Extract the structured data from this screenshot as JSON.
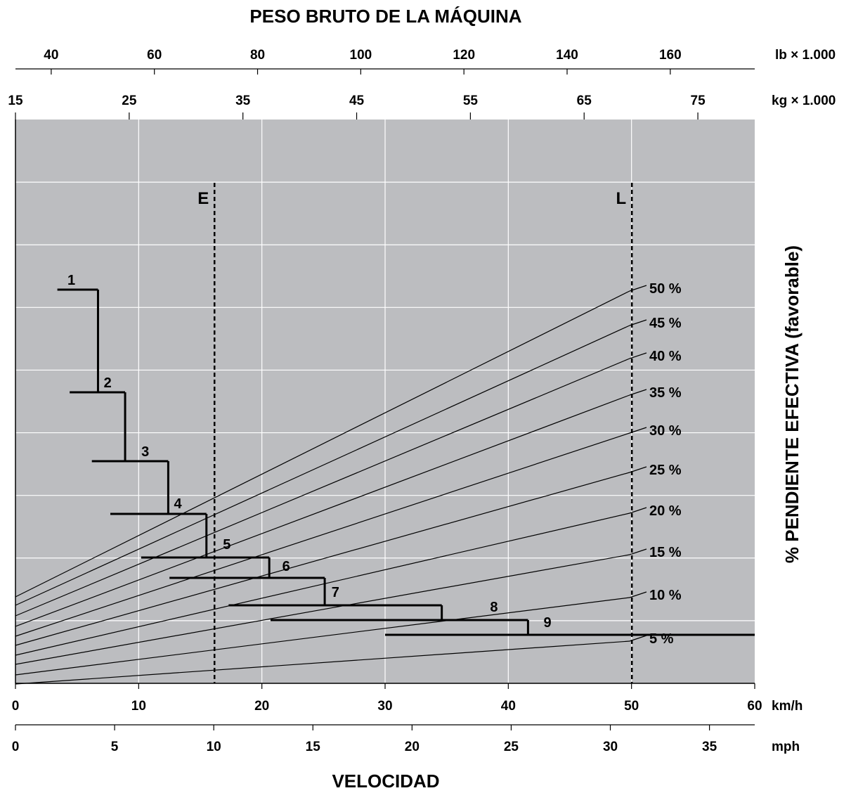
{
  "chart_data": {
    "type": "line",
    "title": "PESO BRUTO DE LA MÁQUINA",
    "xlabel": "VELOCIDAD",
    "ylabel": "% PENDIENTE EFECTIVA (favorable)",
    "top_axes": [
      {
        "unit": "lb × 1.000",
        "ticks": [
          40,
          60,
          80,
          100,
          120,
          140,
          160
        ]
      },
      {
        "unit": "kg × 1.000",
        "ticks": [
          15,
          25,
          35,
          45,
          55,
          65,
          75
        ]
      }
    ],
    "bottom_axes": [
      {
        "unit": "km/h",
        "ticks": [
          0,
          10,
          20,
          30,
          40,
          50,
          60
        ],
        "xlim": [
          0,
          60
        ]
      },
      {
        "unit": "mph",
        "ticks": [
          0,
          5,
          10,
          15,
          20,
          25,
          30,
          35
        ]
      }
    ],
    "weight_markers": [
      {
        "label": "E",
        "kg": 32.5
      },
      {
        "label": "L",
        "kg": 69.2
      }
    ],
    "grade_lines": [
      {
        "name": "50 %",
        "start_kg": 15.0,
        "end_kg": 69.0
      },
      {
        "name": "45 %",
        "start_kg": 15.0,
        "end_kg": 69.0
      },
      {
        "name": "40 %",
        "start_kg": 15.0,
        "end_kg": 69.0
      },
      {
        "name": "35 %",
        "start_kg": 15.0,
        "end_kg": 69.0
      },
      {
        "name": "30 %",
        "start_kg": 15.0,
        "end_kg": 69.0
      },
      {
        "name": "25 %",
        "start_kg": 15.0,
        "end_kg": 69.0
      },
      {
        "name": "20 %",
        "start_kg": 15.0,
        "end_kg": 69.0
      },
      {
        "name": "15 %",
        "start_kg": 15.0,
        "end_kg": 69.0
      },
      {
        "name": "10 %",
        "start_kg": 15.0,
        "end_kg": 69.0
      },
      {
        "name": "5 %",
        "start_kg": 15.0,
        "end_kg": 69.0
      }
    ],
    "gears": [
      {
        "name": "1",
        "speed_from_kmh": 3.4,
        "speed_to_kmh": 6.7,
        "drop_to_gear": "2"
      },
      {
        "name": "2",
        "speed_from_kmh": 4.4,
        "speed_to_kmh": 8.9,
        "drop_to_gear": "3"
      },
      {
        "name": "3",
        "speed_from_kmh": 6.2,
        "speed_to_kmh": 12.4,
        "drop_to_gear": "4"
      },
      {
        "name": "4",
        "speed_from_kmh": 7.7,
        "speed_to_kmh": 15.5,
        "drop_to_gear": "5"
      },
      {
        "name": "5",
        "speed_from_kmh": 10.2,
        "speed_to_kmh": 20.6,
        "drop_to_gear": "6"
      },
      {
        "name": "6",
        "speed_from_kmh": 12.5,
        "speed_to_kmh": 25.1,
        "drop_to_gear": "7"
      },
      {
        "name": "7",
        "speed_from_kmh": 17.3,
        "speed_to_kmh": 34.6,
        "drop_to_gear": "8"
      },
      {
        "name": "8",
        "speed_from_kmh": 20.7,
        "speed_to_kmh": 41.6,
        "drop_to_gear": "9"
      },
      {
        "name": "9",
        "speed_from_kmh": 30.0,
        "speed_to_kmh": 60.0,
        "drop_to_gear": null
      }
    ],
    "grid": true,
    "background": "#bcbdc0",
    "gridline_color": "#ffffff"
  }
}
